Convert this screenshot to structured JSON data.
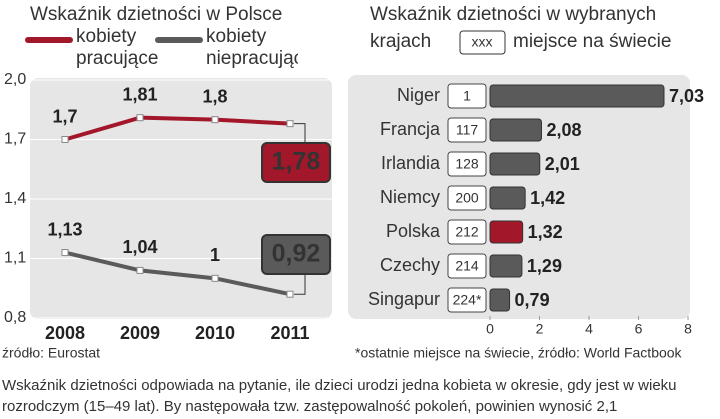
{
  "chart_data": [
    {
      "type": "line",
      "title": "Wskaźnik dzietności w Polsce",
      "categories": [
        "2008",
        "2009",
        "2010",
        "2011"
      ],
      "series": [
        {
          "name": "kobiety pracujące",
          "color": "#a3172b",
          "values": [
            1.7,
            1.81,
            1.8,
            1.78
          ],
          "value_labels": [
            "1,7",
            "1,81",
            "1,8",
            "1,78"
          ]
        },
        {
          "name": "kobiety niepracujące",
          "color": "#5a5a5a",
          "values": [
            1.13,
            1.04,
            1,
            0.92
          ],
          "value_labels": [
            "1,13",
            "1,04",
            "1",
            "0,92"
          ]
        }
      ],
      "ylim": [
        0.8,
        2.0
      ],
      "yticks": [
        {
          "value": 0.8,
          "label": "0,8"
        },
        {
          "value": 1.1,
          "label": "1,1"
        },
        {
          "value": 1.4,
          "label": "1,4"
        },
        {
          "value": 1.7,
          "label": "1,7"
        },
        {
          "value": 2.0,
          "label": "2,0"
        }
      ],
      "grid": true,
      "source": "źródło: Eurostat"
    },
    {
      "type": "hbar",
      "title": [
        "Wskaźnik dzietności w wybranych",
        "krajach"
      ],
      "legend": {
        "key": "xxx",
        "label": "miejsce na świecie"
      },
      "categories": [
        "Niger",
        "Francja",
        "Irlandia",
        "Niemcy",
        "Polska",
        "Czechy",
        "Singapur"
      ],
      "rank_labels": [
        "1",
        "117",
        "128",
        "200",
        "212",
        "214",
        "224*"
      ],
      "values": [
        7.03,
        2.08,
        2.01,
        1.42,
        1.32,
        1.29,
        0.79
      ],
      "value_labels": [
        "7,03",
        "2,08",
        "2,01",
        "1,42",
        "1,32",
        "1,29",
        "0,79"
      ],
      "color": "#5a5a5a",
      "highlight": {
        "category": "Polska",
        "color": "#a3172b"
      },
      "xlim": [
        0,
        8
      ],
      "xticks": [
        0,
        2,
        4,
        6,
        8
      ],
      "source": "*ostatnie miejsce na świecie, źródło: World Factbook"
    }
  ],
  "caption": [
    "Wskaźnik dzietności odpowiada na pytanie, ile dzieci urodzi jedna kobieta w okresie, gdy jest w wieku",
    "rozrodczym (15–49 lat). By następowała tzw. zastępowalność pokoleń, powinien wynosić 2,1"
  ]
}
